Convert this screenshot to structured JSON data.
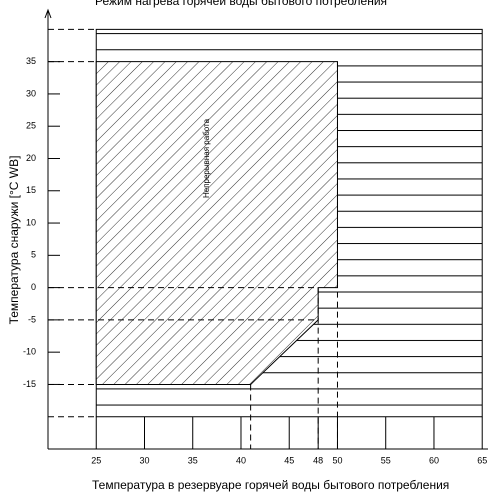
{
  "chart_data": {
    "type": "area",
    "title": "Режим нагрева горячей воды бытового потребления",
    "x_label": "Температура в резервуаре горячей воды бытового потребления",
    "y_label": "Температура снаружи [°C WB]",
    "series": [
      {
        "name": "Непрерывная работа",
        "x": [
          25,
          50,
          50,
          48,
          48,
          41,
          25
        ],
        "values": [
          35,
          35,
          0,
          0,
          -5,
          -15,
          -15
        ],
        "pattern": "diagonal"
      },
      {
        "x": [
          25,
          65,
          65,
          25
        ],
        "values": [
          40,
          40,
          -20,
          -20
        ],
        "pattern": "horizontal"
      }
    ],
    "xlim": [
      20,
      65.6
    ],
    "ylim": [
      -25,
      43
    ],
    "xticks": [
      25,
      30,
      35,
      40,
      45,
      48,
      50,
      55,
      60,
      65
    ],
    "yticks": [
      -15,
      -10,
      -5,
      0,
      5,
      10,
      15,
      20,
      25,
      30,
      35
    ]
  }
}
